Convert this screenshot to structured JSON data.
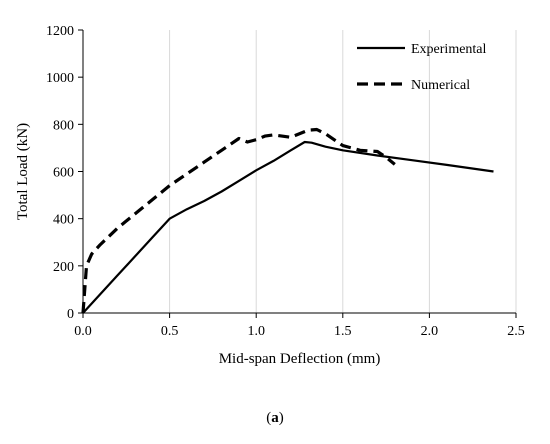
{
  "chart_data": {
    "type": "line",
    "title": "",
    "xlabel": "Mid-span Deflection (mm)",
    "ylabel": "Total Load (kN)",
    "xlim": [
      0,
      2.5
    ],
    "ylim": [
      0,
      1200
    ],
    "xticks": [
      0,
      0.5,
      1,
      1.5,
      2,
      2.5
    ],
    "xtick_labels": [
      "0.0",
      "0.5",
      "1.0",
      "1.5",
      "2.0",
      "2.5"
    ],
    "yticks": [
      0,
      200,
      400,
      600,
      800,
      1000,
      1200
    ],
    "ytick_labels": [
      "0",
      "200",
      "400",
      "600",
      "800",
      "1000",
      "1200"
    ],
    "grid": "vertical",
    "legend_position": "top-right",
    "series": [
      {
        "name": "Experimental",
        "style": "solid",
        "color": "#000000",
        "x": [
          0,
          0.1,
          0.2,
          0.3,
          0.4,
          0.5,
          0.6,
          0.7,
          0.8,
          0.9,
          1.0,
          1.1,
          1.2,
          1.28,
          1.32,
          1.4,
          1.5,
          1.7,
          1.9,
          2.1,
          2.37
        ],
        "y": [
          0,
          80,
          160,
          240,
          320,
          400,
          440,
          475,
          515,
          560,
          605,
          645,
          690,
          725,
          722,
          705,
          690,
          668,
          648,
          628,
          600
        ]
      },
      {
        "name": "Numerical",
        "style": "dashed",
        "color": "#000000",
        "x": [
          0,
          0.02,
          0.05,
          0.1,
          0.2,
          0.3,
          0.4,
          0.5,
          0.6,
          0.7,
          0.8,
          0.9,
          0.95,
          1.0,
          1.05,
          1.1,
          1.2,
          1.3,
          1.35,
          1.4,
          1.5,
          1.6,
          1.7,
          1.75,
          1.8
        ],
        "y": [
          0,
          200,
          250,
          290,
          360,
          420,
          480,
          540,
          590,
          640,
          690,
          740,
          725,
          735,
          750,
          755,
          745,
          775,
          778,
          760,
          710,
          690,
          685,
          660,
          630
        ]
      }
    ]
  },
  "caption": {
    "open": "(",
    "letter": "a",
    "close": ")"
  }
}
